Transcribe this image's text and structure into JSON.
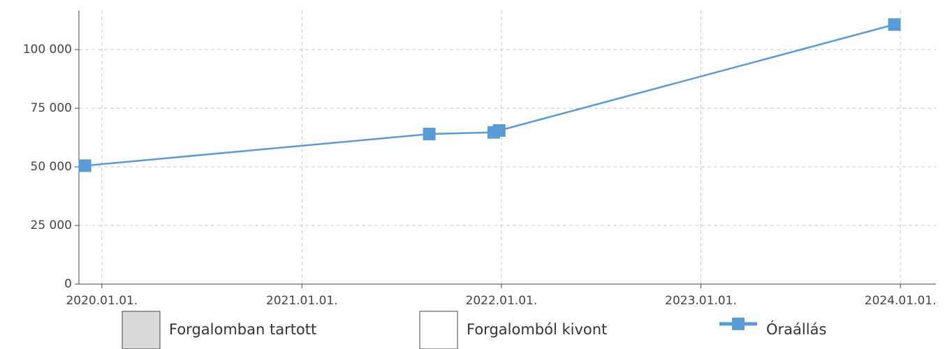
{
  "chart_data": {
    "type": "line",
    "x": [
      "2019-12-01",
      "2021-08-22",
      "2021-12-18",
      "2021-12-28",
      "2023-12-21"
    ],
    "series": [
      {
        "name": "Óraállás",
        "color": "#5b9bd5",
        "values": [
          50500,
          64000,
          64700,
          65500,
          110700
        ]
      }
    ],
    "legend_boxes": [
      {
        "name": "Forgalomban tartott",
        "fill": "#d9d9d9"
      },
      {
        "name": "Forgalomból kivont",
        "fill": "#ffffff"
      }
    ],
    "xlim": [
      "2019-11-20",
      "2024-03-06"
    ],
    "xticks": [
      {
        "value": "2020-01-01",
        "label": "2020.01.01."
      },
      {
        "value": "2021-01-01",
        "label": "2021.01.01."
      },
      {
        "value": "2022-01-01",
        "label": "2022.01.01."
      },
      {
        "value": "2023-01-01",
        "label": "2023.01.01."
      },
      {
        "value": "2024-01-01",
        "label": "2024.01.01."
      }
    ],
    "ylim": [
      0,
      116700
    ],
    "yticks": [
      0,
      {
        "value": 25000,
        "label": "25 000"
      },
      {
        "value": 50000,
        "label": "50 000"
      },
      {
        "value": 75000,
        "label": "75 000"
      },
      {
        "value": 100000,
        "label": "100 000"
      }
    ],
    "grid": true
  }
}
